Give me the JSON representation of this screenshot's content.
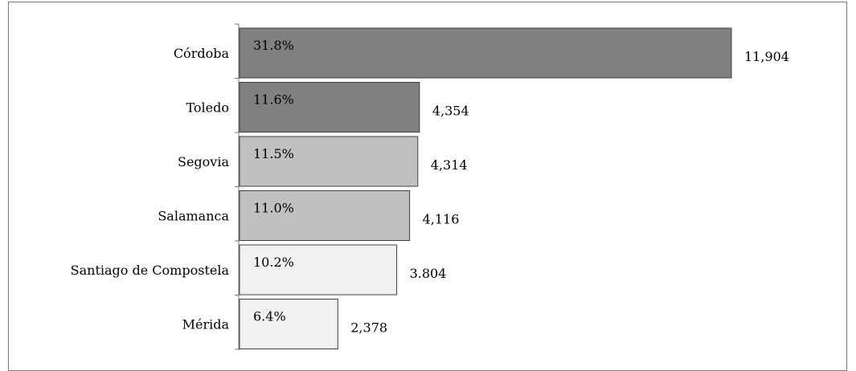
{
  "chart_data": {
    "type": "bar",
    "orientation": "horizontal",
    "categories": [
      "Córdoba",
      "Toledo",
      "Segovia",
      "Salamanca",
      "Santiago de Compostela",
      "Mérida"
    ],
    "values": [
      11904,
      4354,
      4314,
      4116,
      3804,
      2378
    ],
    "value_labels": [
      "11,904",
      "4,354",
      "4,314",
      "4,116",
      "3.804",
      "2,378"
    ],
    "percent_labels": [
      "31.8%",
      "11.6%",
      "11.5%",
      "11.0%",
      "10.2%",
      "6.4%"
    ],
    "bar_colors": [
      "#808080",
      "#808080",
      "#c0c0c0",
      "#c0c0c0",
      "#f2f2f2",
      "#f2f2f2"
    ],
    "bar_border_color": "#404040",
    "xlim": [
      0,
      11904
    ],
    "grid": false,
    "legend": "none"
  }
}
